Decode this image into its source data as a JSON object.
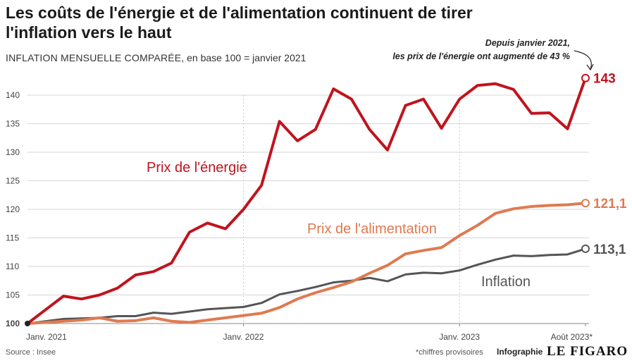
{
  "title": "Les coûts de l'énergie et de l'alimentation continuent de tirer l'inflation vers le haut",
  "subtitle_caps": "INFLATION MENSUELLE COMPARÉE",
  "subtitle_rest": ", en base 100 = janvier 2021",
  "annotation": {
    "line1": "Depuis janvier 2021,",
    "line2": "les prix de l'énergie ont augmenté de 43 %"
  },
  "source": "Source : Insee",
  "note": "*chiffres provisoires",
  "credit": "Infographie",
  "logo": "LE FIGARO",
  "chart_data": {
    "type": "line",
    "ylim": [
      100,
      143
    ],
    "yticks": [
      100,
      105,
      110,
      115,
      120,
      125,
      130,
      135,
      140
    ],
    "x_labels": [
      {
        "index": 0,
        "label": "Janv. 2021"
      },
      {
        "index": 12,
        "label": "Janv. 2022"
      },
      {
        "index": 24,
        "label": "Janv. 2023"
      },
      {
        "index": 31,
        "label": "Août 2023*"
      }
    ],
    "grid": "y and yearly vertical dashed",
    "series": [
      {
        "name": "Prix de l'énergie",
        "color": "#c0141e",
        "end_label": "143",
        "values": [
          100,
          102.4,
          104.8,
          104.3,
          105.0,
          106.2,
          108.5,
          109.1,
          110.6,
          116.0,
          117.6,
          116.6,
          120.0,
          124.2,
          135.4,
          132.0,
          134.0,
          141.1,
          139.3,
          134.0,
          130.4,
          138.2,
          139.3,
          134.2,
          139.3,
          141.7,
          142.0,
          141.0,
          136.8,
          136.9,
          134.1,
          143.0
        ]
      },
      {
        "name": "Prix de l'alimentation",
        "color": "#e07a50",
        "end_label": "121,1",
        "values": [
          100,
          100.2,
          100.4,
          100.6,
          101.0,
          100.4,
          100.5,
          101.0,
          100.4,
          100.2,
          100.6,
          101.0,
          101.4,
          101.8,
          102.8,
          104.3,
          105.4,
          106.3,
          107.3,
          108.8,
          110.2,
          112.2,
          112.8,
          113.3,
          115.4,
          117.2,
          119.3,
          120.1,
          120.5,
          120.7,
          120.8,
          121.1
        ]
      },
      {
        "name": "Inflation",
        "color": "#555555",
        "end_label": "113,1",
        "values": [
          100,
          100.4,
          100.8,
          100.9,
          101.0,
          101.3,
          101.3,
          101.9,
          101.7,
          102.1,
          102.5,
          102.7,
          102.9,
          103.6,
          105.1,
          105.7,
          106.4,
          107.2,
          107.5,
          108.0,
          107.4,
          108.6,
          108.9,
          108.8,
          109.3,
          110.3,
          111.2,
          111.9,
          111.8,
          112.0,
          112.1,
          113.1
        ]
      }
    ]
  }
}
